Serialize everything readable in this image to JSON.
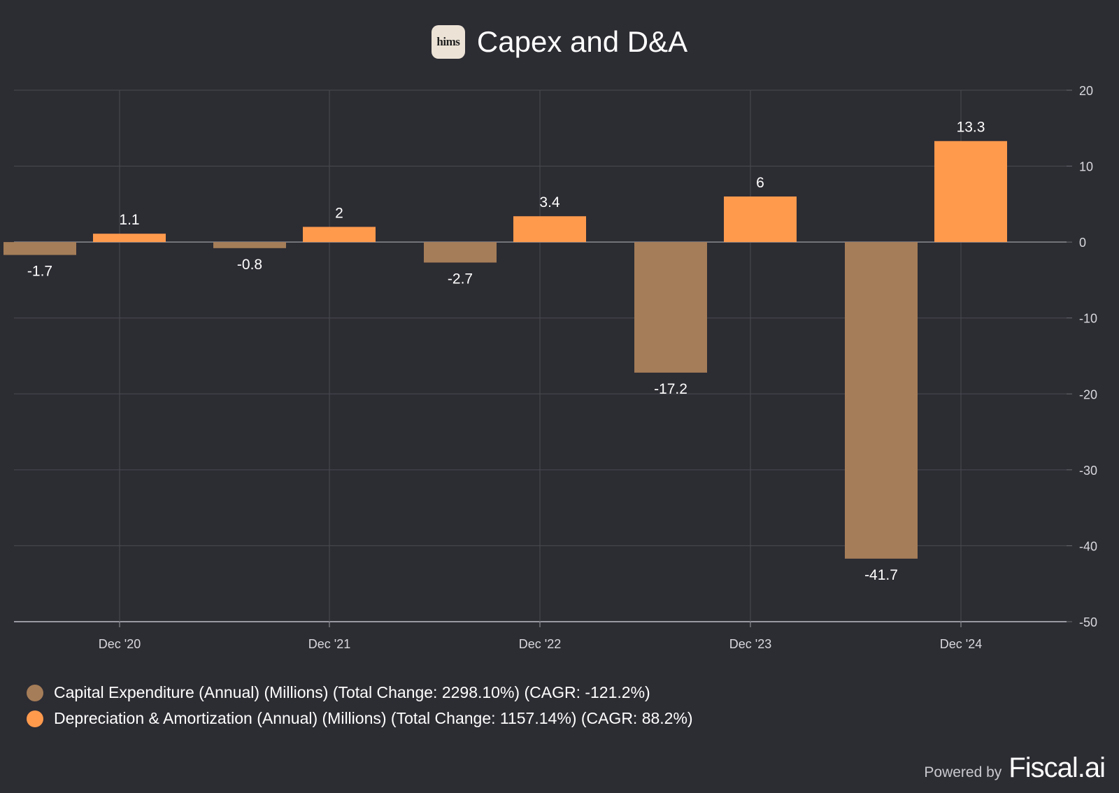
{
  "header": {
    "logo_text": "hims",
    "title": "Capex and D&A"
  },
  "colors": {
    "background": "#2c2c33",
    "capex": "#a57d58",
    "da": "#ff9a4d",
    "grid": "#4a4a52"
  },
  "chart_data": {
    "type": "bar",
    "categories": [
      "Dec '20",
      "Dec '21",
      "Dec '22",
      "Dec '23",
      "Dec '24"
    ],
    "series": [
      {
        "name": "Capital Expenditure (Annual) (Millions) (Total Change: 2298.10%) (CAGR: -121.2%)",
        "values": [
          -1.7,
          -0.8,
          -2.7,
          -17.2,
          -41.7
        ],
        "labels": [
          "-1.7",
          "-0.8",
          "-2.7",
          "-17.2",
          "-41.7"
        ],
        "color": "#a57d58"
      },
      {
        "name": "Depreciation & Amortization (Annual) (Millions) (Total Change: 1157.14%) (CAGR: 88.2%)",
        "values": [
          1.1,
          2,
          3.4,
          6,
          13.3
        ],
        "labels": [
          "1.1",
          "2",
          "3.4",
          "6",
          "13.3"
        ],
        "color": "#ff9a4d"
      }
    ],
    "ylim": [
      -50,
      20
    ],
    "yticks": [
      "20",
      "10",
      "0",
      "-10",
      "-20",
      "-30",
      "-40",
      "-50"
    ],
    "ytick_values": [
      20,
      10,
      0,
      -10,
      -20,
      -30,
      -40,
      -50
    ],
    "grid": true,
    "y_axis_side": "right",
    "legend_position": "bottom-left"
  },
  "legend": {
    "items": [
      {
        "label": "Capital Expenditure (Annual) (Millions) (Total Change: 2298.10%) (CAGR: -121.2%)"
      },
      {
        "label": "Depreciation & Amortization (Annual) (Millions) (Total Change: 1157.14%) (CAGR: 88.2%)"
      }
    ]
  },
  "footer": {
    "powered_by": "Powered by",
    "brand": "Fiscal.ai"
  }
}
